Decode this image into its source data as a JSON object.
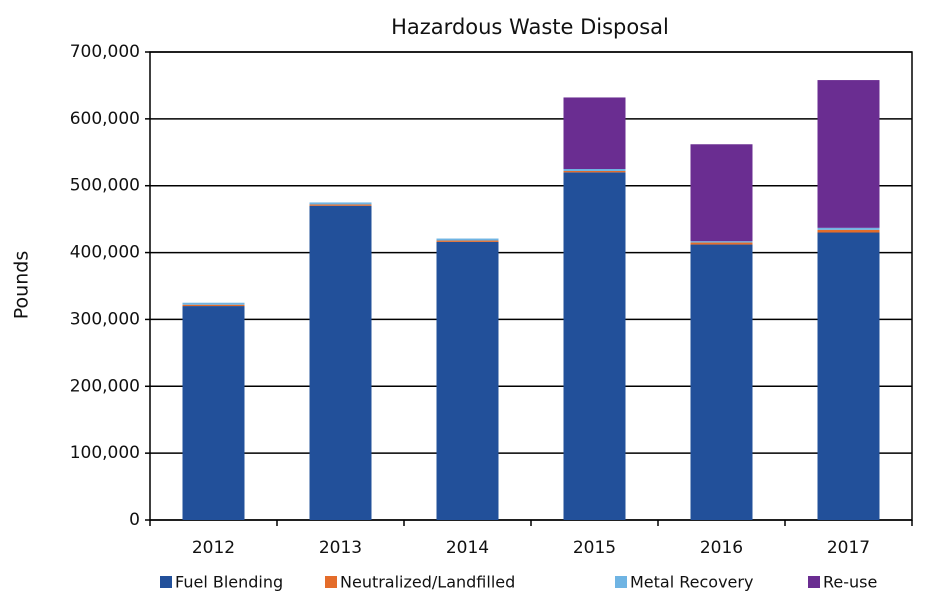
{
  "chart_data": {
    "type": "stacked_bar",
    "title": "Hazardous Waste Disposal",
    "y_label": "Pounds",
    "categories": [
      "2012",
      "2013",
      "2014",
      "2015",
      "2016",
      "2017"
    ],
    "series": [
      {
        "name": "Fuel Blending",
        "color": "#22509a",
        "values": [
          320000,
          470000,
          416000,
          520000,
          412000,
          430000
        ]
      },
      {
        "name": "Neutralized/Landfilled",
        "color": "#e46c2a",
        "values": [
          2000,
          2000,
          2000,
          2000,
          3000,
          4000
        ]
      },
      {
        "name": "Metal Recovery",
        "color": "#6fb4e3",
        "values": [
          3000,
          3000,
          3000,
          3000,
          2000,
          3000
        ]
      },
      {
        "name": "Re-use",
        "color": "#6a2d91",
        "values": [
          0,
          0,
          0,
          107000,
          145000,
          221000
        ]
      }
    ],
    "ylim": [
      0,
      700000
    ],
    "yticks": [
      0,
      {
        "value": 100000,
        "label": "100,000"
      },
      {
        "value": 200000,
        "label": "200,000"
      },
      {
        "value": 300000,
        "label": "300,000"
      },
      {
        "value": 400000,
        "label": "400,000"
      },
      {
        "value": 500000,
        "label": "500,000"
      },
      {
        "value": 600000,
        "label": "600,000"
      },
      {
        "value": 700000,
        "label": "700,000"
      }
    ],
    "grid": true,
    "legend": "bottom"
  }
}
